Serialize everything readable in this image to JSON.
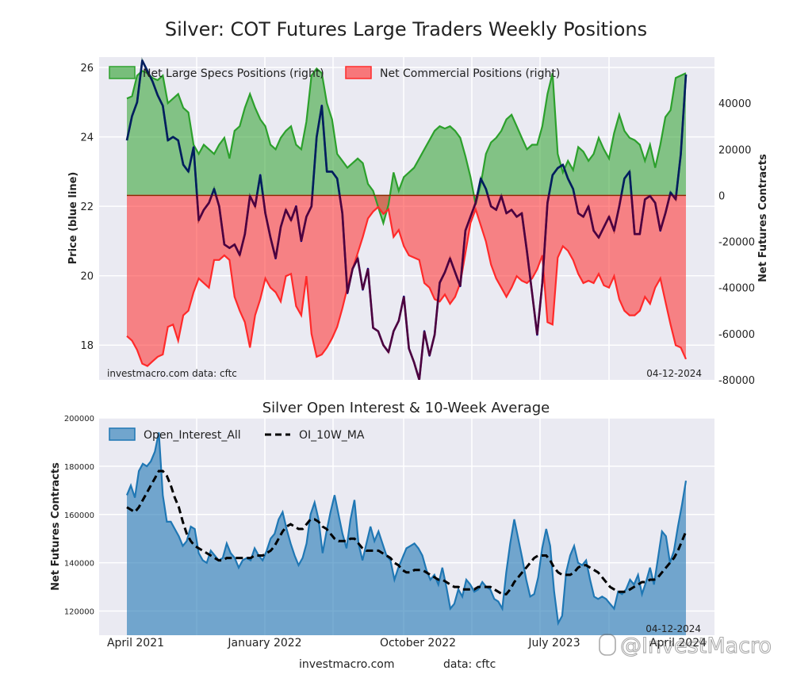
{
  "title": "Silver: COT Futures Large Traders Weekly Positions",
  "footer": {
    "source": "investmacro.com",
    "data": "data: cftc"
  },
  "watermark": "@InvestMacro",
  "chart_data": [
    {
      "type": "area",
      "id": "positions",
      "ylabel_left": "Price (blue line)",
      "ylabel_right": "Net Futures Contracts",
      "ylim_left": [
        17,
        26.3
      ],
      "ylim_right": [
        -80000,
        60000
      ],
      "yticks_left": [
        18,
        20,
        22,
        24,
        26
      ],
      "yticks_right": [
        -80000,
        -60000,
        -40000,
        -20000,
        0,
        20000,
        40000
      ],
      "grid": true,
      "legend": "top",
      "note_left": "investmacro.com   data: cftc",
      "note_right": "04-12-2024",
      "colors": {
        "specs": "#2ca02c",
        "commercial": "#ff2a2a",
        "price": "#00008b",
        "price_alt": "#8b0000"
      },
      "series": [
        {
          "name": "Net Large Specs Positions (right)",
          "axis": "right",
          "values": [
            42000,
            43000,
            52000,
            54000,
            53000,
            51000,
            50000,
            52000,
            40000,
            42000,
            44000,
            38000,
            36000,
            22000,
            18000,
            22000,
            20000,
            18000,
            22000,
            25000,
            16000,
            28000,
            30000,
            38000,
            44000,
            38000,
            33000,
            30000,
            22000,
            20000,
            25000,
            28000,
            30000,
            22000,
            20000,
            32000,
            52000,
            55000,
            53000,
            40000,
            33000,
            18000,
            15000,
            12000,
            14000,
            16000,
            14000,
            5000,
            2000,
            -5000,
            -12000,
            -4000,
            10000,
            2000,
            8000,
            10000,
            12000,
            16000,
            20000,
            24000,
            28000,
            30000,
            29000,
            30000,
            28000,
            25000,
            17000,
            8000,
            -4000,
            5000,
            18000,
            23000,
            25000,
            28000,
            33000,
            35000,
            30000,
            25000,
            20000,
            22000,
            22000,
            30000,
            44000,
            53000,
            18000,
            10000,
            15000,
            11000,
            21000,
            19000,
            15000,
            18000,
            25000,
            20000,
            16000,
            27000,
            35000,
            28000,
            25000,
            24000,
            22000,
            15000,
            22000,
            12000,
            22000,
            34000,
            37000,
            51000,
            52000,
            53000
          ]
        },
        {
          "name": "Net Commercial Positions (right)",
          "axis": "right",
          "values": [
            -61000,
            -63000,
            -67000,
            -73000,
            -74000,
            -72000,
            -70000,
            -69000,
            -57000,
            -56000,
            -63000,
            -52000,
            -50000,
            -42000,
            -36000,
            -38000,
            -40000,
            -28000,
            -28000,
            -26000,
            -28000,
            -44000,
            -50000,
            -55000,
            -66000,
            -52000,
            -45000,
            -36000,
            -40000,
            -42000,
            -46000,
            -35000,
            -34000,
            -48000,
            -52000,
            -35000,
            -60000,
            -70000,
            -69000,
            -66000,
            -62000,
            -57000,
            -49000,
            -40000,
            -32000,
            -25000,
            -18000,
            -10000,
            -7000,
            -5000,
            -8000,
            -6000,
            -18000,
            -15000,
            -22000,
            -26000,
            -27000,
            -28000,
            -38000,
            -40000,
            -45000,
            -46000,
            -43000,
            -47000,
            -44000,
            -38000,
            -25000,
            -12000,
            -6000,
            -13000,
            -20000,
            -30000,
            -36000,
            -40000,
            -44000,
            -40000,
            -35000,
            -37000,
            -38000,
            -36000,
            -32000,
            -26000,
            -55000,
            -56000,
            -27000,
            -22000,
            -24000,
            -28000,
            -34000,
            -38000,
            -37000,
            -38000,
            -34000,
            -39000,
            -40000,
            -35000,
            -45000,
            -50000,
            -52000,
            -52000,
            -50000,
            -44000,
            -47000,
            -40000,
            -36000,
            -46000,
            -56000,
            -65000,
            -66000,
            -71000
          ]
        },
        {
          "name": "Price (blue line)",
          "axis": "left",
          "values": [
            23.9,
            24.6,
            25.0,
            26.2,
            25.9,
            25.6,
            25.2,
            24.9,
            23.9,
            24.0,
            23.9,
            23.2,
            23.0,
            23.7,
            21.6,
            21.9,
            22.1,
            22.5,
            22.0,
            20.9,
            20.8,
            20.9,
            20.6,
            21.2,
            22.3,
            22.0,
            22.9,
            21.8,
            21.1,
            20.5,
            21.4,
            21.9,
            21.6,
            22.0,
            21.0,
            21.7,
            22.0,
            24.0,
            24.9,
            23.0,
            23.0,
            22.8,
            21.8,
            19.5,
            20.2,
            20.5,
            19.6,
            20.2,
            18.5,
            18.4,
            18.0,
            17.8,
            18.4,
            18.7,
            19.4,
            17.9,
            17.5,
            17.0,
            18.4,
            17.7,
            18.3,
            19.8,
            20.1,
            20.5,
            20.1,
            19.7,
            21.3,
            21.7,
            22.1,
            22.8,
            22.5,
            22.0,
            21.9,
            22.3,
            21.8,
            21.9,
            21.7,
            21.8,
            20.7,
            19.5,
            18.3,
            19.8,
            22.1,
            22.9,
            23.1,
            23.2,
            22.8,
            22.5,
            21.8,
            21.7,
            22.0,
            21.3,
            21.1,
            21.4,
            21.7,
            21.3,
            22.0,
            22.8,
            23.0,
            21.2,
            21.2,
            22.2,
            22.3,
            22.1,
            21.3,
            21.8,
            22.4,
            22.2,
            23.5,
            25.8
          ]
        }
      ]
    },
    {
      "type": "area",
      "id": "open_interest",
      "title": "Silver Open Interest & 10-Week Average",
      "ylabel": "Net Futures Contracts",
      "ylim": [
        110000,
        200000
      ],
      "yticks": [
        120000,
        140000,
        160000,
        180000,
        200000
      ],
      "xticks": [
        "April 2021",
        "January 2022",
        "October 2022",
        "July 2023",
        "April 2024"
      ],
      "grid": true,
      "legend": "top-left",
      "note_right": "04-12-2024",
      "colors": {
        "oi": "#1f77b4",
        "ma": "#000000"
      },
      "series": [
        {
          "name": "Open_Interest_All",
          "values": [
            168000,
            172000,
            167000,
            178000,
            181000,
            180000,
            182000,
            186000,
            194000,
            168000,
            157000,
            157000,
            154000,
            151000,
            147000,
            149000,
            155000,
            154000,
            144000,
            141000,
            140000,
            145000,
            143000,
            141000,
            142000,
            148000,
            144000,
            142000,
            138000,
            141000,
            142000,
            141000,
            146000,
            143000,
            141000,
            145000,
            150000,
            152000,
            158000,
            161000,
            154000,
            148000,
            143000,
            139000,
            142000,
            148000,
            160000,
            165000,
            158000,
            144000,
            153000,
            161000,
            168000,
            160000,
            152000,
            146000,
            158000,
            166000,
            148000,
            141000,
            148000,
            155000,
            149000,
            153000,
            148000,
            143000,
            141000,
            133000,
            138000,
            142000,
            146000,
            147000,
            148000,
            146000,
            143000,
            137000,
            133000,
            135000,
            131000,
            138000,
            130000,
            121000,
            123000,
            129000,
            126000,
            133000,
            131000,
            128000,
            129000,
            132000,
            130000,
            129000,
            125000,
            124000,
            121000,
            136000,
            148000,
            158000,
            150000,
            142000,
            133000,
            126000,
            127000,
            134000,
            146000,
            154000,
            147000,
            128000,
            115000,
            118000,
            136000,
            143000,
            147000,
            140000,
            139000,
            141000,
            133000,
            126000,
            125000,
            126000,
            125000,
            123000,
            121000,
            128000,
            127000,
            129000,
            133000,
            131000,
            135000,
            127000,
            132000,
            138000,
            131000,
            142000,
            153000,
            151000,
            140000,
            145000,
            155000,
            164000,
            174000
          ]
        },
        {
          "name": "OI_10W_MA",
          "values": [
            163000,
            162000,
            161000,
            163000,
            166000,
            169000,
            172000,
            175000,
            178000,
            178000,
            176000,
            172000,
            167000,
            163000,
            157000,
            152000,
            149000,
            147000,
            146000,
            145000,
            144000,
            143000,
            142000,
            141000,
            141000,
            142000,
            142000,
            142000,
            142000,
            142000,
            142000,
            142000,
            143000,
            143000,
            143000,
            144000,
            145000,
            147000,
            150000,
            153000,
            155000,
            156000,
            155000,
            154000,
            154000,
            156000,
            158000,
            158000,
            157000,
            155000,
            154000,
            152000,
            150000,
            149000,
            149000,
            149000,
            150000,
            150000,
            148000,
            146000,
            145000,
            145000,
            145000,
            145000,
            144000,
            143000,
            142000,
            140000,
            139000,
            137000,
            136000,
            136000,
            137000,
            137000,
            137000,
            136000,
            135000,
            134000,
            133000,
            133000,
            132000,
            131000,
            130000,
            130000,
            129000,
            129000,
            129000,
            129000,
            130000,
            130000,
            130000,
            130000,
            129000,
            128000,
            127000,
            127000,
            129000,
            132000,
            134000,
            136000,
            138000,
            140000,
            142000,
            143000,
            143000,
            143000,
            141000,
            138000,
            136000,
            135000,
            135000,
            135000,
            136000,
            138000,
            139000,
            139000,
            138000,
            137000,
            136000,
            134000,
            132000,
            130000,
            129000,
            128000,
            128000,
            128000,
            129000,
            130000,
            131000,
            132000,
            132000,
            133000,
            133000,
            134000,
            136000,
            138000,
            140000,
            142000,
            145000,
            149000,
            153000
          ]
        }
      ]
    }
  ]
}
